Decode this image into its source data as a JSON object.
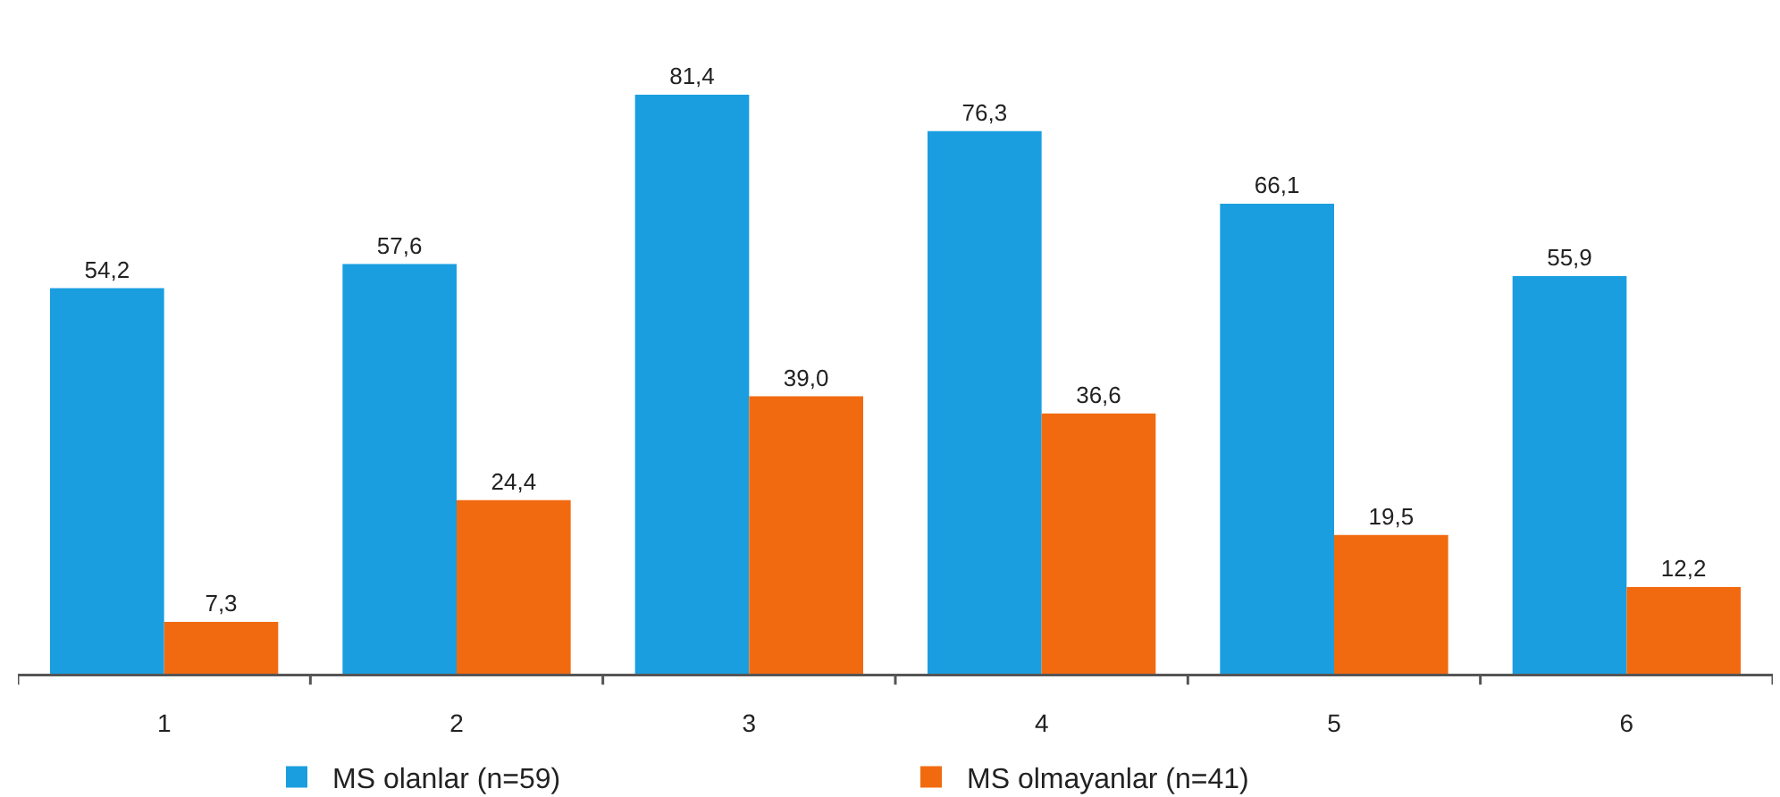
{
  "chart_data": {
    "type": "bar",
    "categories": [
      "1",
      "2",
      "3",
      "4",
      "5",
      "6"
    ],
    "series": [
      {
        "name": "MS olanlar (n=59)",
        "color": "#1a9ee0",
        "values": [
          54.2,
          57.6,
          81.4,
          76.3,
          66.1,
          55.9
        ],
        "value_labels": [
          "54,2",
          "57,6",
          "81,4",
          "76,3",
          "66,1",
          "55,9"
        ]
      },
      {
        "name": "MS olmayanlar (n=41)",
        "color": "#f26a10",
        "values": [
          7.3,
          24.4,
          39.0,
          36.6,
          19.5,
          12.2
        ],
        "value_labels": [
          "7,3",
          "24,4",
          "39,0",
          "36,6",
          "19,5",
          "12,2"
        ]
      }
    ],
    "legend": "bottom"
  }
}
